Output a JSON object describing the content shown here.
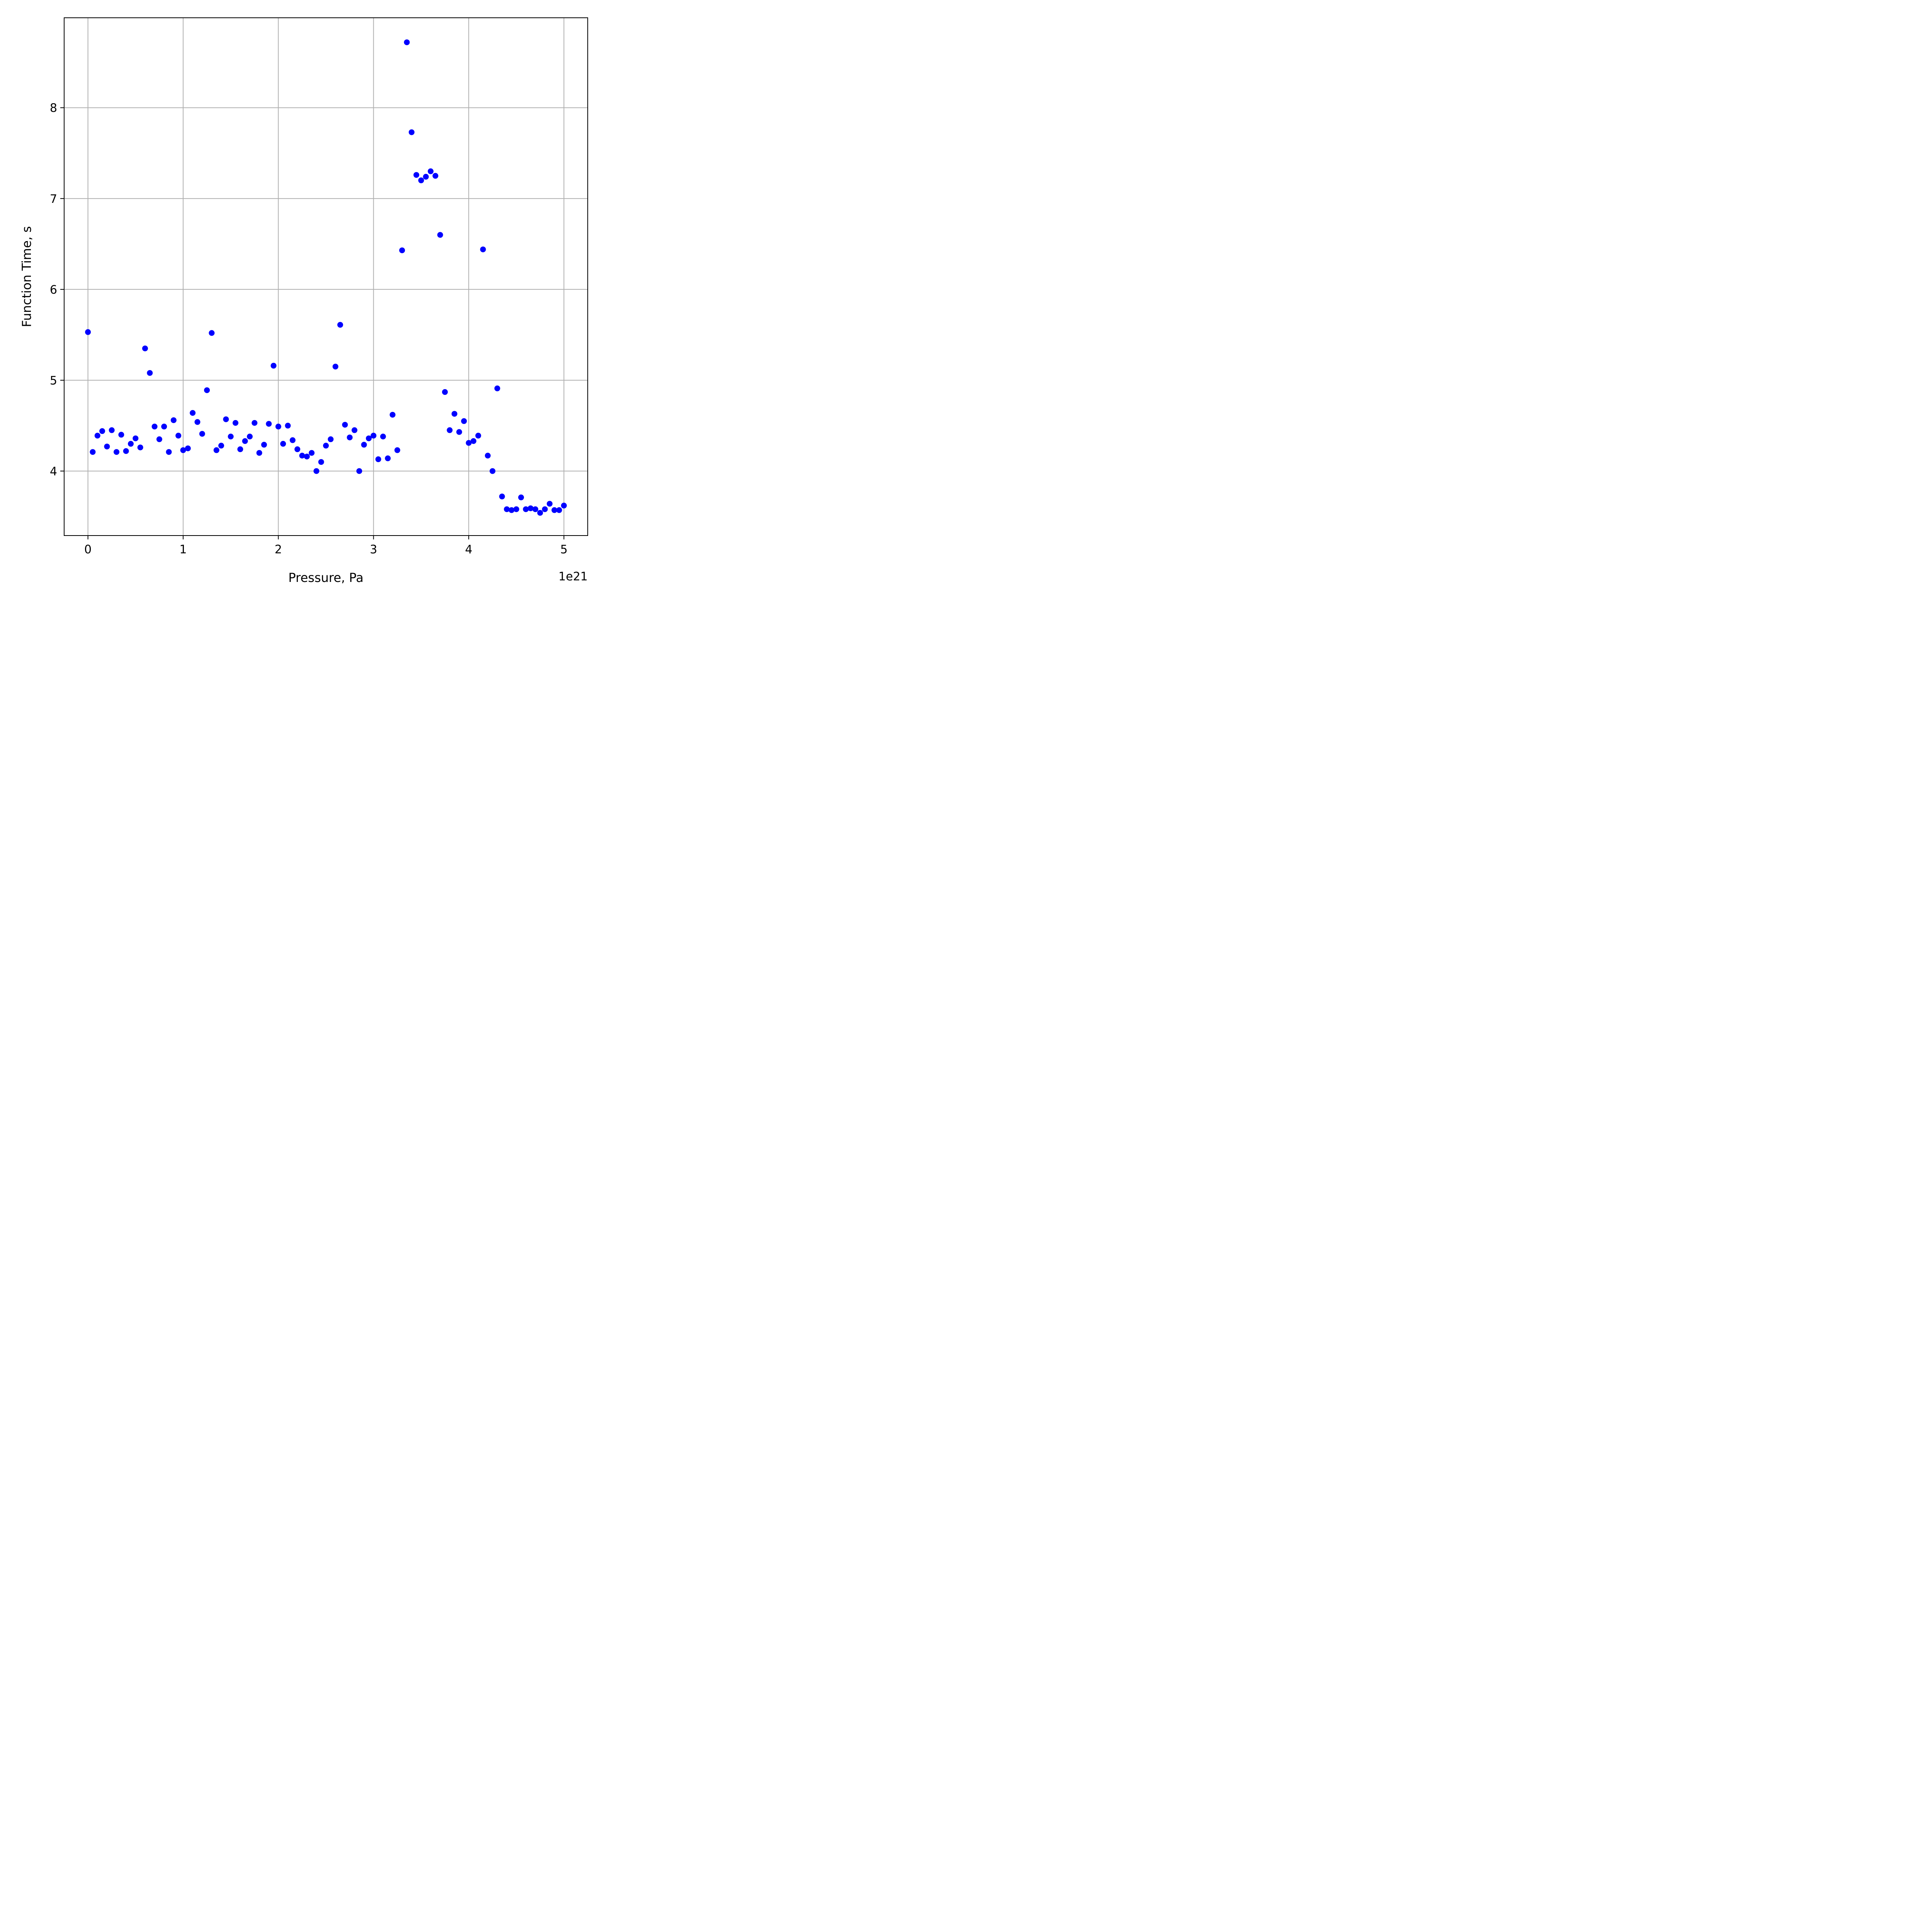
{
  "chart_data": {
    "type": "scatter",
    "title": "",
    "xlabel": "Pressure, Pa",
    "ylabel": "Function Time, s",
    "x_offset_label": "1e21",
    "x_scale_factor": 1e+21,
    "xlim": [
      -0.25,
      5.25
    ],
    "ylim": [
      3.29,
      8.99
    ],
    "x_ticks": [
      0,
      1,
      2,
      3,
      4,
      5
    ],
    "y_ticks": [
      4,
      5,
      6,
      7,
      8
    ],
    "grid": true,
    "legend": false,
    "marker_color": "#0000ff",
    "series": [
      {
        "x": [
          0.0,
          0.05,
          0.1,
          0.15,
          0.2,
          0.25,
          0.3,
          0.35,
          0.4,
          0.45,
          0.5,
          0.55,
          0.6,
          0.65,
          0.7,
          0.75,
          0.8,
          0.85,
          0.9,
          0.95,
          1.0,
          1.05,
          1.1,
          1.15,
          1.2,
          1.25,
          1.3,
          1.35,
          1.4,
          1.45,
          1.5,
          1.55,
          1.6,
          1.65,
          1.7,
          1.75,
          1.8,
          1.85,
          1.9,
          1.95,
          2.0,
          2.05,
          2.1,
          2.15,
          2.2,
          2.25,
          2.3,
          2.35,
          2.4,
          2.45,
          2.5,
          2.55,
          2.6,
          2.65,
          2.7,
          2.75,
          2.8,
          2.85,
          2.9,
          2.95,
          3.0,
          3.05,
          3.1,
          3.15,
          3.2,
          3.25,
          3.3,
          3.35,
          3.4,
          3.45,
          3.5,
          3.55,
          3.6,
          3.65,
          3.7,
          3.75,
          3.8,
          3.85,
          3.9,
          3.95,
          4.0,
          4.05,
          4.1,
          4.15,
          4.2,
          4.25,
          4.3,
          4.35,
          4.4,
          4.45,
          4.5,
          4.55,
          4.6,
          4.65,
          4.7,
          4.75,
          4.8,
          4.85,
          4.9,
          4.95,
          5.0
        ],
        "y": [
          5.53,
          4.21,
          4.39,
          4.44,
          4.27,
          4.45,
          4.21,
          4.4,
          4.22,
          4.3,
          4.36,
          4.26,
          5.35,
          5.08,
          4.49,
          4.35,
          4.49,
          4.21,
          4.56,
          4.39,
          4.23,
          4.25,
          4.64,
          4.54,
          4.41,
          4.89,
          5.52,
          4.23,
          4.28,
          4.57,
          4.38,
          4.53,
          4.24,
          4.33,
          4.38,
          4.53,
          4.2,
          4.29,
          4.52,
          5.16,
          4.49,
          4.3,
          4.5,
          4.34,
          4.24,
          4.17,
          4.16,
          4.2,
          4.0,
          4.1,
          4.28,
          4.35,
          5.15,
          5.61,
          4.51,
          4.37,
          4.45,
          4.0,
          4.29,
          4.36,
          4.39,
          4.13,
          4.38,
          4.14,
          4.62,
          4.23,
          6.43,
          8.72,
          7.73,
          7.26,
          7.2,
          7.24,
          7.3,
          7.25,
          6.6,
          4.87,
          4.45,
          4.63,
          4.43,
          4.55,
          4.31,
          4.33,
          4.39,
          6.44,
          4.17,
          4.0,
          4.91,
          3.72,
          3.58,
          3.57,
          3.58,
          3.71,
          3.58,
          3.59,
          3.58,
          3.54,
          3.58,
          3.64,
          3.57,
          3.57,
          3.62
        ]
      }
    ]
  }
}
